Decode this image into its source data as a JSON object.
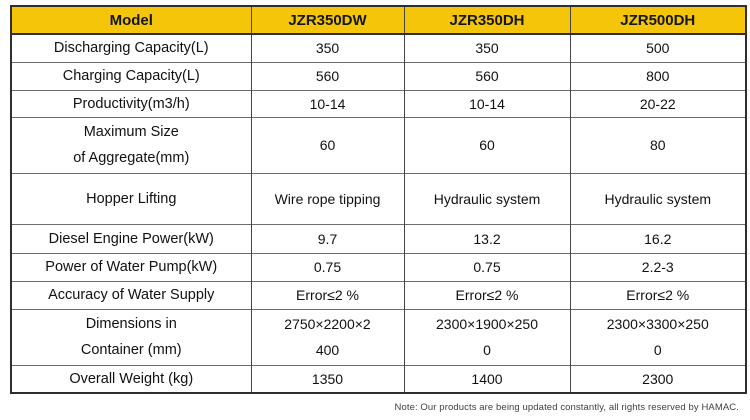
{
  "colors": {
    "header_bg": "#f5c50a",
    "header_text": "#161616",
    "border_dark": "#2e2e2e",
    "border_mid": "#454545",
    "border_light": "#6e6e6e",
    "note_text": "#3f3f3f"
  },
  "table": {
    "header": {
      "model_label": "Model",
      "columns": [
        "JZR350DW",
        "JZR350DH",
        "JZR500DH"
      ]
    },
    "rows": [
      {
        "label": "Discharging Capacity(L)",
        "values": [
          "350",
          "350",
          "500"
        ]
      },
      {
        "label": "Charging Capacity(L)",
        "values": [
          "560",
          "560",
          "800"
        ]
      },
      {
        "label": "Productivity(m3/h)",
        "values": [
          "10-14",
          "10-14",
          "20-22"
        ]
      },
      {
        "label": "Maximum Size\nof Aggregate(mm)",
        "values": [
          "60",
          "60",
          "80"
        ]
      },
      {
        "label": "Hopper Lifting",
        "values": [
          "Wire rope tipping",
          "Hydraulic system",
          "Hydraulic system"
        ]
      },
      {
        "label": "Diesel Engine Power(kW)",
        "values": [
          "9.7",
          "13.2",
          "16.2"
        ]
      },
      {
        "label": "Power of Water Pump(kW)",
        "values": [
          "0.75",
          "0.75",
          "2.2-3"
        ]
      },
      {
        "label": "Accuracy of Water Supply",
        "values": [
          "Error≤2 %",
          "Error≤2 %",
          "Error≤2 %"
        ]
      },
      {
        "label": "Dimensions in\nContainer (mm)",
        "values": [
          "2750×2200×2\n400",
          "2300×1900×250\n0",
          "2300×3300×250\n0"
        ]
      },
      {
        "label": "Overall Weight (kg)",
        "values": [
          "1350",
          "1400",
          "2300"
        ]
      }
    ],
    "note": "Note: Our products are being updated constantly, all rights reserved by HAMAC."
  }
}
